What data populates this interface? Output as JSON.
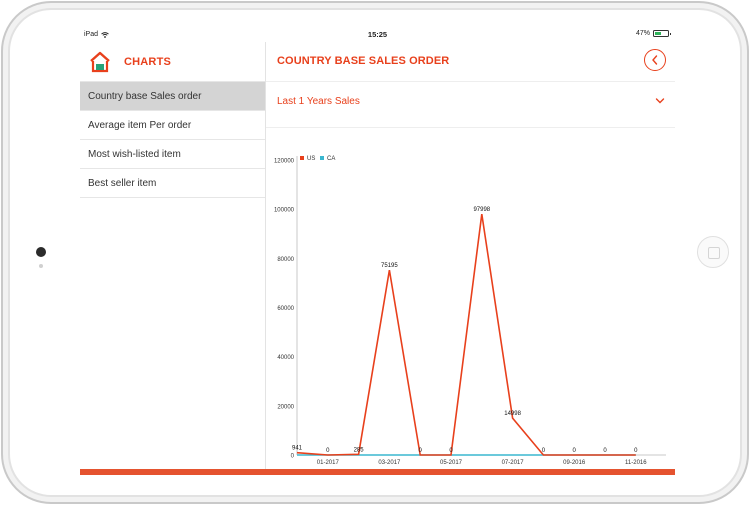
{
  "status_bar": {
    "device": "iPad",
    "time": "15:25",
    "battery": "47%"
  },
  "sidebar": {
    "title": "CHARTS",
    "items": [
      {
        "label": "Country base Sales order",
        "active": true
      },
      {
        "label": "Average item Per order",
        "active": false
      },
      {
        "label": "Most wish-listed item",
        "active": false
      },
      {
        "label": "Best seller item",
        "active": false
      }
    ]
  },
  "main": {
    "title": "COUNTRY BASE SALES ORDER",
    "period_selector": "Last 1 Years Sales"
  },
  "colors": {
    "accent": "#e8401c",
    "series_us": "#e8401c",
    "series_ca": "#3ab7cf",
    "bottom_bar": "#e5532f"
  },
  "chart_data": {
    "type": "line",
    "title": "",
    "xlabel": "",
    "ylabel": "",
    "ylim": [
      0,
      120000
    ],
    "yticks": [
      0,
      20000,
      40000,
      60000,
      80000,
      100000,
      120000
    ],
    "xtick_labels": [
      {
        "index": 1,
        "label": "01-2017"
      },
      {
        "index": 3,
        "label": "03-2017"
      },
      {
        "index": 5,
        "label": "05-2017"
      },
      {
        "index": 7,
        "label": "07-2017"
      },
      {
        "index": 9,
        "label": "09-2016"
      },
      {
        "index": 11,
        "label": "11-2016"
      }
    ],
    "series": [
      {
        "name": "US",
        "color": "#e8401c",
        "values": [
          941,
          0,
          285,
          75195,
          0,
          0,
          97998,
          14998,
          0,
          0,
          0,
          0
        ]
      },
      {
        "name": "CA",
        "color": "#3ab7cf",
        "values": [
          0,
          0,
          0,
          0,
          0,
          0,
          0,
          0,
          0,
          0,
          0,
          0
        ]
      }
    ],
    "data_labels": [
      "941",
      "0",
      "285",
      "75195",
      "0",
      "0",
      "97998",
      "14998",
      "0",
      "0",
      "0",
      "0"
    ],
    "legend_position": "top-left",
    "grid": false
  }
}
